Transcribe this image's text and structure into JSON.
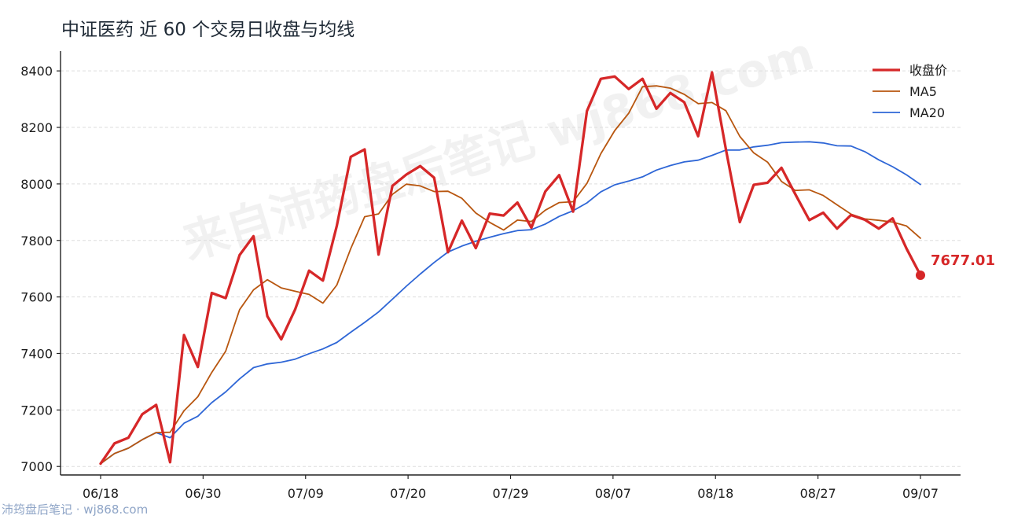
{
  "title": "中证医药 近 60 个交易日收盘与均线",
  "watermark": "来自沛筠盘后笔记 wj868.com",
  "footer": "沛筠盘后笔记 · wj868.com",
  "chart_data": {
    "type": "line",
    "title": "中证医药 近 60 个交易日收盘与均线",
    "xlabel": "",
    "ylabel": "",
    "ylim": [
      6970,
      8470
    ],
    "yticks": [
      7000,
      7200,
      7400,
      7600,
      7800,
      8000,
      8200,
      8400
    ],
    "xtick_labels": [
      "06/18",
      "06/30",
      "07/09",
      "07/20",
      "07/29",
      "08/07",
      "08/18",
      "08/27",
      "09/07"
    ],
    "xtick_positions": [
      0,
      8,
      16,
      24,
      32,
      40,
      48,
      56,
      64
    ],
    "grid": "horizontal",
    "legend_position": "top-right",
    "last_value_label": "7677.01",
    "series": [
      {
        "name": "收盘价",
        "color": "#d62728",
        "values": [
          7010,
          7082,
          7102,
          7185,
          7218,
          7015,
          7465,
          7352,
          7614,
          7596,
          7748,
          7815,
          7532,
          7450,
          7556,
          7693,
          7658,
          7852,
          8096,
          8122,
          7750,
          7993,
          8033,
          8063,
          8022,
          7758,
          7870,
          7773,
          7895,
          7888,
          7934,
          7845,
          7973,
          8031,
          7902,
          8258,
          8372,
          8380,
          8336,
          8372,
          8266,
          8322,
          8289,
          8169,
          8395,
          8122,
          7865,
          7997,
          8004,
          8057,
          7963,
          7872,
          7898,
          7842,
          7890,
          7873,
          7842,
          7878,
          7771,
          7677.01
        ]
      },
      {
        "name": "MA5",
        "color": "#b8560f",
        "values": [
          7010,
          7046,
          7065,
          7095,
          7120,
          7121,
          7197,
          7247,
          7333,
          7408,
          7555,
          7625,
          7661,
          7632,
          7620,
          7609,
          7578,
          7642,
          7771,
          7884,
          7894,
          7963,
          7999,
          7993,
          7973,
          7974,
          7949,
          7897,
          7864,
          7837,
          7872,
          7867,
          7907,
          7934,
          7937,
          8002,
          8107,
          8189,
          8250,
          8344,
          8347,
          8339,
          8317,
          8284,
          8288,
          8259,
          8168,
          8110,
          8077,
          8009,
          7977,
          7979,
          7959,
          7926,
          7893,
          7876,
          7871,
          7865,
          7851,
          7808
        ]
      },
      {
        "name": "MA20",
        "color": "#2e66d6",
        "values": [
          7010,
          7046,
          7065,
          7095,
          7120,
          7102,
          7153,
          7178,
          7226,
          7264,
          7310,
          7350,
          7363,
          7369,
          7380,
          7399,
          7416,
          7439,
          7475,
          7510,
          7547,
          7592,
          7638,
          7681,
          7722,
          7759,
          7780,
          7797,
          7811,
          7824,
          7835,
          7838,
          7858,
          7885,
          7905,
          7933,
          7972,
          7997,
          8010,
          8025,
          8049,
          8065,
          8078,
          8084,
          8101,
          8120,
          8120,
          8131,
          8137,
          8146,
          8148,
          8149,
          8145,
          8135,
          8134,
          8114,
          8085,
          8061,
          8032,
          7998
        ]
      }
    ]
  }
}
